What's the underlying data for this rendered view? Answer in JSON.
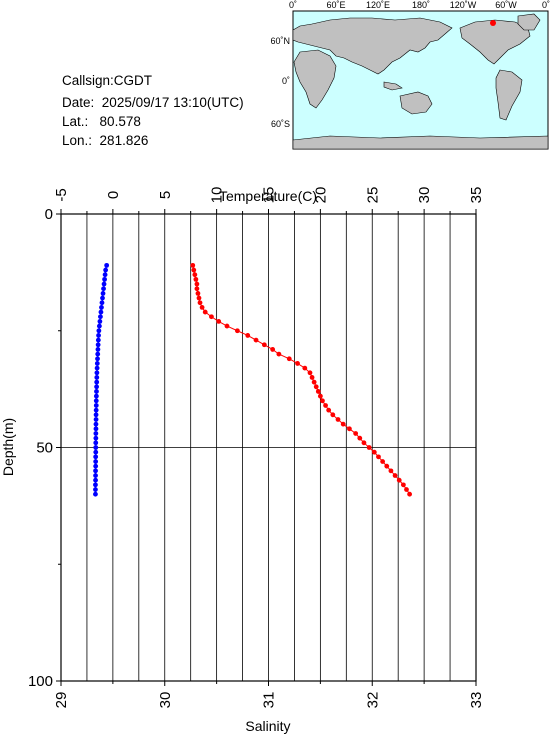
{
  "station": {
    "callsign": "Callsign:CGDT",
    "date_label": "Date:",
    "date_value": "2025/09/17 13:10(UTC)",
    "lat_label": "Lat.:",
    "lat_value": "80.578",
    "lon_label": "Lon.:",
    "lon_value": "281.826"
  },
  "map": {
    "lon_ticks": [
      "0˚",
      "60˚E",
      "120˚E",
      "180˚",
      "120˚W",
      "60˚W",
      "0˚"
    ],
    "lat_ticks": [
      "60˚N",
      "0˚",
      "60˚S"
    ],
    "ocean_color": "#ccffff",
    "land_color": "#c0c0c0",
    "marker_color": "#ff0000"
  },
  "chart_data": {
    "type": "line",
    "top_axis": {
      "label": "Temperature(C)",
      "ticks": [
        "-5",
        "0",
        "5",
        "10",
        "15",
        "20",
        "25",
        "30",
        "35"
      ],
      "range": [
        -5,
        35
      ]
    },
    "bottom_axis": {
      "label": "Salinity",
      "ticks": [
        "29",
        "30",
        "31",
        "32",
        "33"
      ],
      "range": [
        29,
        33
      ]
    },
    "left_axis": {
      "label": "Depth(m)",
      "ticks": [
        "0",
        "50",
        "100"
      ],
      "range": [
        0,
        100
      ]
    },
    "grid": true,
    "series": [
      {
        "axis": "temperature",
        "color": "#0000ff",
        "depth": [
          11,
          12,
          13,
          14,
          15,
          16,
          17,
          18,
          19,
          20,
          21,
          22,
          23,
          24,
          25,
          26,
          27,
          28,
          29,
          30,
          31,
          32,
          33,
          34,
          35,
          36,
          37,
          38,
          39,
          40,
          41,
          42,
          43,
          44,
          45,
          46,
          47,
          48,
          49,
          50,
          51,
          52,
          53,
          54,
          55,
          56,
          57,
          58,
          59,
          60
        ],
        "values": [
          -0.6,
          -0.7,
          -0.75,
          -0.8,
          -0.85,
          -0.9,
          -0.95,
          -1.0,
          -1.05,
          -1.1,
          -1.15,
          -1.2,
          -1.25,
          -1.3,
          -1.35,
          -1.38,
          -1.4,
          -1.42,
          -1.44,
          -1.46,
          -1.48,
          -1.5,
          -1.52,
          -1.54,
          -1.55,
          -1.56,
          -1.57,
          -1.58,
          -1.59,
          -1.6,
          -1.6,
          -1.61,
          -1.62,
          -1.62,
          -1.63,
          -1.63,
          -1.64,
          -1.64,
          -1.65,
          -1.65,
          -1.65,
          -1.66,
          -1.66,
          -1.66,
          -1.67,
          -1.67,
          -1.67,
          -1.68,
          -1.68,
          -1.68
        ]
      },
      {
        "axis": "salinity",
        "color": "#ff0000",
        "depth": [
          11,
          12,
          13,
          14,
          15,
          16,
          17,
          18,
          19,
          20,
          21,
          22,
          23,
          24,
          25,
          26,
          27,
          28,
          29,
          30,
          31,
          32,
          33,
          34,
          35,
          36,
          37,
          38,
          39,
          40,
          41,
          42,
          43,
          44,
          45,
          46,
          47,
          48,
          49,
          50,
          51,
          52,
          53,
          54,
          55,
          56,
          57,
          58,
          59,
          60
        ],
        "values": [
          30.27,
          30.28,
          30.29,
          30.3,
          30.31,
          30.31,
          30.32,
          30.33,
          30.34,
          30.36,
          30.39,
          30.45,
          30.52,
          30.6,
          30.7,
          30.8,
          30.88,
          30.96,
          31.04,
          31.1,
          31.2,
          31.28,
          31.35,
          31.4,
          31.42,
          31.44,
          31.46,
          31.48,
          31.5,
          31.52,
          31.55,
          31.58,
          31.62,
          31.67,
          31.72,
          31.78,
          31.84,
          31.88,
          31.92,
          31.97,
          32.02,
          32.06,
          32.1,
          32.14,
          32.18,
          32.22,
          32.26,
          32.3,
          32.33,
          32.36
        ]
      }
    ]
  }
}
